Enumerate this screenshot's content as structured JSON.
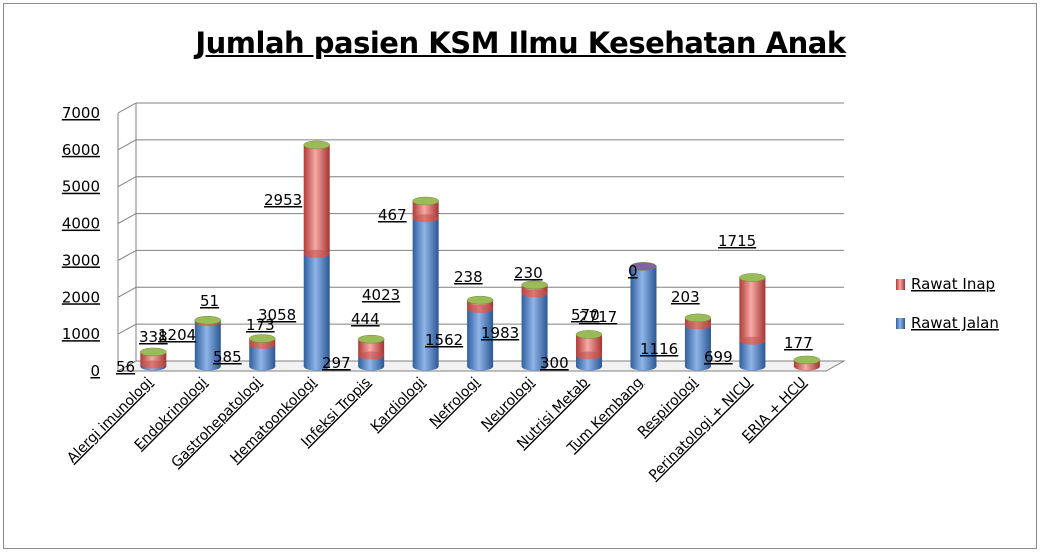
{
  "colors": {
    "rawat_jalan": "#4f81bd",
    "rawat_inap": "#c0504d",
    "top_cap": "#9bbb59",
    "grid": "#808080",
    "frame": "#8c8c8c"
  },
  "chart_data": {
    "type": "bar",
    "stacked": true,
    "three_d": true,
    "title": "Jumlah pasien KSM Ilmu Kesehatan Anak",
    "xlabel": "",
    "ylabel": "",
    "ylim": [
      0,
      7000
    ],
    "yticks": [
      "0",
      "1000",
      "2000",
      "3000",
      "4000",
      "5000",
      "6000",
      "7000"
    ],
    "grid": true,
    "legend_position": "right",
    "categories": [
      "Alergi imunologi",
      "Endokrinologi",
      "Gastrohepatologi",
      "Hematoonkologi",
      "Infeksi Tropis",
      "Kardiologi",
      "Nefrologi",
      "Neurologi",
      "Nutrisi Metab",
      "Tum Kembang",
      "Respirologi",
      "Perinatologi + NICU",
      "ERIA + HCU"
    ],
    "series": [
      {
        "name": "Rawat Jalan",
        "values": [
          56,
          1204,
          585,
          3058,
          297,
          4023,
          1562,
          1983,
          300,
          2717,
          1116,
          699,
          0
        ]
      },
      {
        "name": "Rawat Inap",
        "values": [
          338,
          51,
          173,
          2953,
          444,
          467,
          238,
          230,
          570,
          0,
          203,
          1715,
          177
        ]
      }
    ],
    "data_labels": {
      "rawat_jalan": [
        "56",
        "1204",
        "585",
        "3058",
        "297",
        "4023",
        "1562",
        "1983",
        "300",
        "2717",
        "1116",
        "699",
        ""
      ],
      "rawat_inap": [
        "338",
        "51",
        "173",
        "2953",
        "444",
        "467",
        "238",
        "230",
        "570",
        "0",
        "203",
        "1715",
        "177"
      ]
    }
  }
}
